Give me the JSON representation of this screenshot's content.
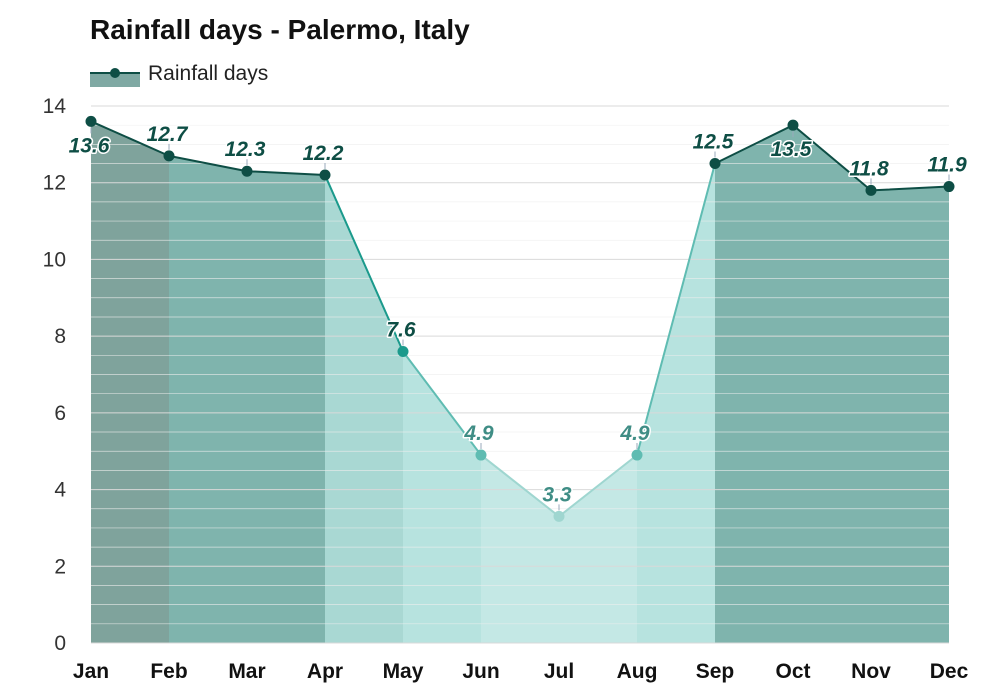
{
  "chart_data": {
    "type": "area",
    "title": "Rainfall days - Palermo, Italy",
    "legend": {
      "label": "Rainfall days",
      "placement": "top-left"
    },
    "categories": [
      "Jan",
      "Feb",
      "Mar",
      "Apr",
      "May",
      "Jun",
      "Jul",
      "Aug",
      "Sep",
      "Oct",
      "Nov",
      "Dec"
    ],
    "series": [
      {
        "name": "Rainfall days",
        "values": [
          13.6,
          12.7,
          12.3,
          12.2,
          7.6,
          4.9,
          3.3,
          4.9,
          12.5,
          13.5,
          11.8,
          11.9
        ]
      }
    ],
    "value_labels": [
      "13.6",
      "12.7",
      "12.3",
      "12.2",
      "7.6",
      "4.9",
      "3.3",
      "4.9",
      "12.5",
      "13.5",
      "11.8",
      "11.9"
    ],
    "ylim": [
      0,
      14
    ],
    "yticks": [
      0,
      2,
      4,
      6,
      8,
      10,
      12,
      14
    ],
    "ytick_labels": [
      "0",
      "2",
      "4",
      "6",
      "8",
      "10",
      "12",
      "14"
    ],
    "grid": true,
    "colors": {
      "line_dark": "#0e4e45",
      "line_teal": "#1b9a8c",
      "line_light": "#5fbcb2",
      "line_pale": "#9fd6d0"
    }
  }
}
